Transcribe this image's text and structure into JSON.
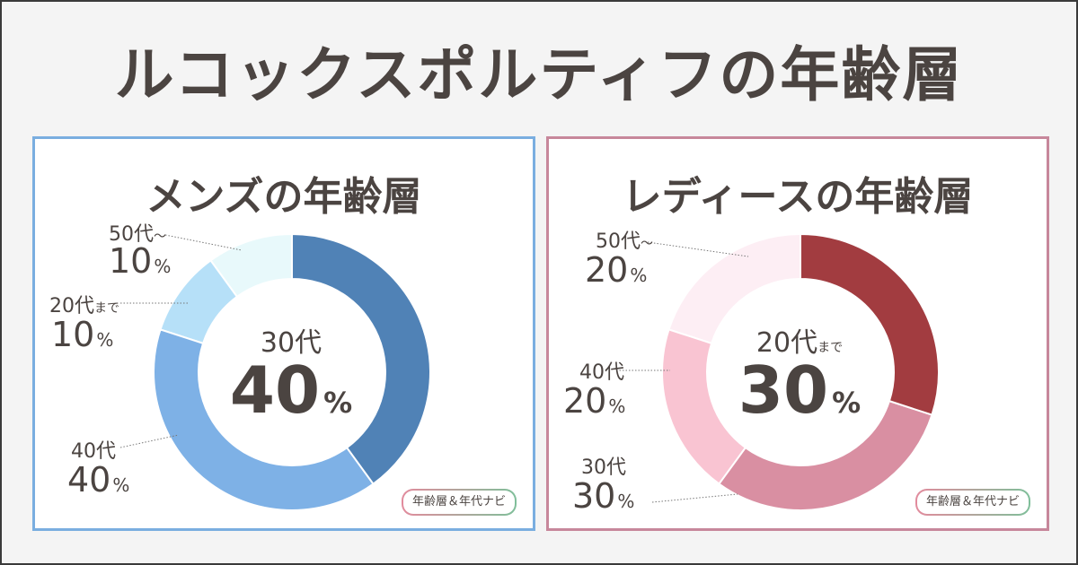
{
  "title": "ルコックスポルティフの年齢層",
  "badge_text": "年齢層＆年代ナビ",
  "chart_data": [
    {
      "type": "pie",
      "title": "メンズの年齢層",
      "categories": [
        "30代",
        "40代",
        "20代まで",
        "50代～"
      ],
      "values": [
        40,
        40,
        10,
        10
      ],
      "unit": "%",
      "colors": [
        "#5082b6",
        "#7eb1e6",
        "#b6e0f8",
        "#e8f9fb"
      ],
      "highlight": {
        "age": "30代",
        "age_suffix": "",
        "value": "40"
      },
      "labels": [
        {
          "age": "50代",
          "suffix": "～",
          "value": "10"
        },
        {
          "age": "20代",
          "suffix": "まで",
          "value": "10"
        },
        {
          "age": "40代",
          "suffix": "",
          "value": "40"
        }
      ]
    },
    {
      "type": "pie",
      "title": "レディースの年齢層",
      "categories": [
        "20代まで",
        "30代",
        "40代",
        "50代～"
      ],
      "values": [
        30,
        30,
        20,
        20
      ],
      "unit": "%",
      "colors": [
        "#a23c40",
        "#d98fa2",
        "#f9c4d2",
        "#fdeef4"
      ],
      "highlight": {
        "age": "20代",
        "age_suffix": "まで",
        "value": "30"
      },
      "labels": [
        {
          "age": "50代",
          "suffix": "～",
          "value": "20"
        },
        {
          "age": "40代",
          "suffix": "",
          "value": "20"
        },
        {
          "age": "30代",
          "suffix": "",
          "value": "30"
        }
      ]
    }
  ]
}
